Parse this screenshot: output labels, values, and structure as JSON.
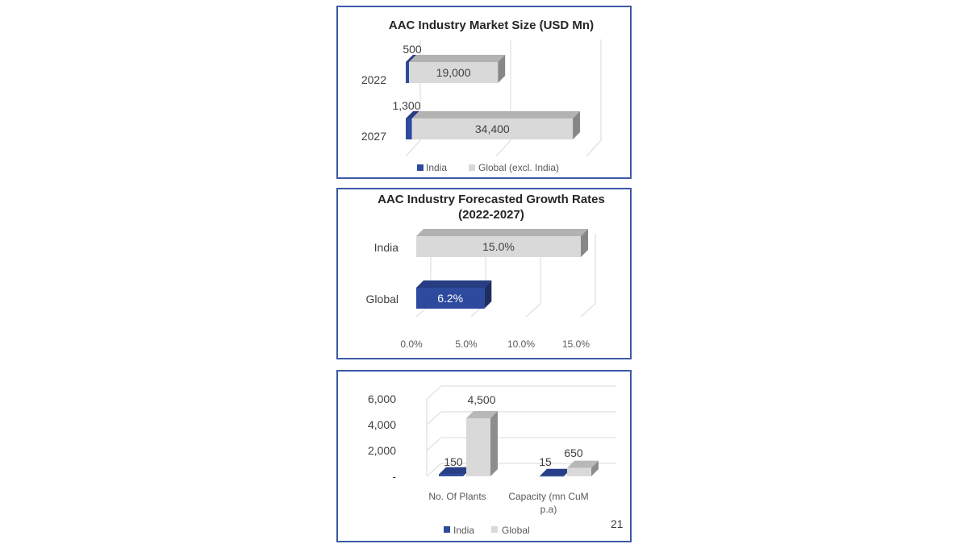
{
  "page_number": "21",
  "colors": {
    "india": "#2e4a9e",
    "global": "#d9d9d9",
    "global_dark": "#a6a6a6",
    "border": "#3c5aa6"
  },
  "chart_data": [
    {
      "type": "bar",
      "orientation": "horizontal",
      "stacked": true,
      "title": "AAC Industry Market Size (USD Mn)",
      "categories": [
        "2022",
        "2027"
      ],
      "series": [
        {
          "name": "India",
          "values": [
            500,
            1300
          ],
          "labels": [
            "500",
            "1,300"
          ]
        },
        {
          "name": "Global (excl. India)",
          "values": [
            19000,
            34400
          ],
          "labels": [
            "19,000",
            "34,400"
          ]
        }
      ],
      "xlim": [
        0,
        40000
      ],
      "legend": "bottom",
      "grid": true
    },
    {
      "type": "bar",
      "orientation": "horizontal",
      "title_lines": [
        "AAC Industry Forecasted Growth Rates",
        "(2022-2027)"
      ],
      "categories": [
        "India",
        "Global"
      ],
      "values": [
        15.0,
        6.2
      ],
      "labels": [
        "15.0%",
        "6.2%"
      ],
      "xticks": [
        "0.0%",
        "5.0%",
        "10.0%",
        "15.0%"
      ],
      "xlim": [
        0,
        15
      ],
      "grid": true
    },
    {
      "type": "bar",
      "categories": [
        "No. Of Plants",
        "Capacity (mn CuM p.a)"
      ],
      "category_lines": [
        [
          "No. Of Plants"
        ],
        [
          "Capacity (mn CuM",
          "p.a)"
        ]
      ],
      "series": [
        {
          "name": "India",
          "values": [
            150,
            15
          ],
          "labels": [
            "150",
            "15"
          ]
        },
        {
          "name": "Global",
          "values": [
            4500,
            650
          ],
          "labels": [
            "4,500",
            "650"
          ]
        }
      ],
      "yticks": [
        "-",
        "2,000",
        "4,000",
        "6,000"
      ],
      "ylim": [
        0,
        6000
      ],
      "legend": "bottom",
      "grid": true
    }
  ]
}
